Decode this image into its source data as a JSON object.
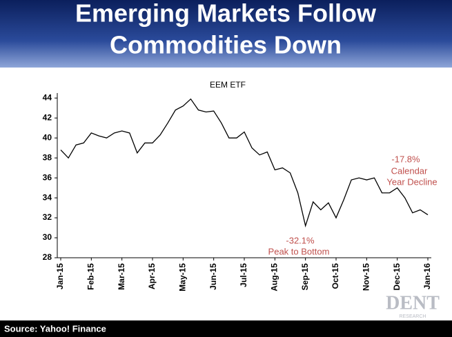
{
  "slide": {
    "title": [
      "Emerging Markets Follow",
      "Commodities Down"
    ],
    "source": "Source: Yahoo! Finance",
    "logo": "DENT",
    "logo_sub": "RESEARCH"
  },
  "chart_data": {
    "type": "line",
    "title": "EEM ETF",
    "x": [
      0,
      0.25,
      0.5,
      0.75,
      1,
      1.25,
      1.5,
      1.75,
      2,
      2.25,
      2.5,
      2.75,
      3,
      3.25,
      3.5,
      3.75,
      4,
      4.25,
      4.5,
      4.75,
      5,
      5.25,
      5.5,
      5.75,
      6,
      6.25,
      6.5,
      6.75,
      7,
      7.25,
      7.5,
      7.75,
      8,
      8.25,
      8.5,
      8.75,
      9,
      9.25,
      9.5,
      9.75,
      10,
      10.25,
      10.5,
      10.75,
      11,
      11.25,
      11.5,
      11.75,
      12
    ],
    "series": [
      {
        "name": "EEM ETF",
        "color": "#000000",
        "values": [
          38.8,
          38.0,
          39.3,
          39.5,
          40.5,
          40.2,
          40.0,
          40.5,
          40.7,
          40.5,
          38.5,
          39.5,
          39.5,
          40.3,
          41.5,
          42.8,
          43.2,
          43.9,
          42.8,
          42.6,
          42.7,
          41.5,
          40.0,
          40.0,
          40.6,
          39.0,
          38.3,
          38.6,
          36.8,
          37.0,
          36.5,
          34.5,
          31.2,
          33.6,
          32.8,
          33.5,
          32.0,
          33.8,
          35.8,
          36.0,
          35.8,
          36.0,
          34.5,
          34.5,
          35.0,
          34.0,
          32.5,
          32.8,
          32.3
        ]
      }
    ],
    "xlim": [
      0,
      12
    ],
    "xticks": [
      {
        "value": 0,
        "label": "Jan-15"
      },
      {
        "value": 1,
        "label": "Feb-15"
      },
      {
        "value": 2,
        "label": "Mar-15"
      },
      {
        "value": 3,
        "label": "Apr-15"
      },
      {
        "value": 4,
        "label": "May-15"
      },
      {
        "value": 5,
        "label": "Jun-15"
      },
      {
        "value": 6,
        "label": "Jul-15"
      },
      {
        "value": 7,
        "label": "Aug-15"
      },
      {
        "value": 8,
        "label": "Sep-15"
      },
      {
        "value": 9,
        "label": "Oct-15"
      },
      {
        "value": 10,
        "label": "Nov-15"
      },
      {
        "value": 11,
        "label": "Dec-15"
      },
      {
        "value": 12,
        "label": "Jan-16"
      }
    ],
    "ylim": [
      28,
      44.5
    ],
    "yticks": [
      28,
      30,
      32,
      34,
      36,
      38,
      40,
      42,
      44
    ],
    "annotations": [
      {
        "text": "-32.1%",
        "color": "#c0504d"
      },
      {
        "text": "Peak to Bottom",
        "color": "#c0504d"
      },
      {
        "text": "-17.8%",
        "color": "#c0504d"
      },
      {
        "text": "Calendar",
        "color": "#c0504d"
      },
      {
        "text": "Year Decline",
        "color": "#c0504d"
      }
    ]
  }
}
